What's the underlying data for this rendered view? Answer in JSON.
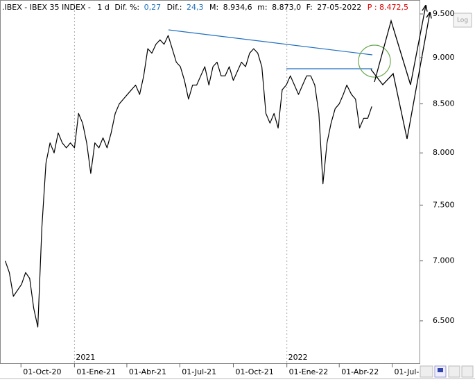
{
  "header": {
    "symbol": ".IBEX - IBEX 35 INDEX -",
    "period": "1 d",
    "dif_pct_label": "Dif. %:",
    "dif_pct": "0,27",
    "dif_label": "Dif.:",
    "dif": "24,3",
    "max_label": "M:",
    "max": "8.934,6",
    "min_label": "m:",
    "min": "8.873,0",
    "date_label": "F:",
    "date": "27-05-2022",
    "price": "P : 8.472,5"
  },
  "toolbar": {
    "log_button": "Log"
  },
  "chart_data": {
    "type": "line",
    "color": "#000000",
    "log_scale": true,
    "grid": false,
    "x": [
      "2020-09-04",
      "2020-09-11",
      "2020-09-18",
      "2020-09-25",
      "2020-10-02",
      "2020-10-09",
      "2020-10-16",
      "2020-10-23",
      "2020-10-30",
      "2020-11-06",
      "2020-11-13",
      "2020-11-20",
      "2020-11-27",
      "2020-12-04",
      "2020-12-11",
      "2020-12-18",
      "2020-12-25",
      "2021-01-01",
      "2021-01-08",
      "2021-01-15",
      "2021-01-22",
      "2021-01-29",
      "2021-02-05",
      "2021-02-12",
      "2021-02-19",
      "2021-02-26",
      "2021-03-05",
      "2021-03-12",
      "2021-03-19",
      "2021-03-26",
      "2021-04-02",
      "2021-04-09",
      "2021-04-16",
      "2021-04-23",
      "2021-04-30",
      "2021-05-07",
      "2021-05-14",
      "2021-05-21",
      "2021-05-28",
      "2021-06-04",
      "2021-06-11",
      "2021-06-18",
      "2021-06-25",
      "2021-07-02",
      "2021-07-09",
      "2021-07-16",
      "2021-07-23",
      "2021-07-30",
      "2021-08-06",
      "2021-08-13",
      "2021-08-20",
      "2021-08-27",
      "2021-09-03",
      "2021-09-10",
      "2021-09-17",
      "2021-09-24",
      "2021-10-01",
      "2021-10-08",
      "2021-10-15",
      "2021-10-22",
      "2021-10-29",
      "2021-11-05",
      "2021-11-12",
      "2021-11-19",
      "2021-11-26",
      "2021-12-03",
      "2021-12-10",
      "2021-12-17",
      "2021-12-24",
      "2021-12-31",
      "2022-01-07",
      "2022-01-14",
      "2022-01-21",
      "2022-01-28",
      "2022-02-04",
      "2022-02-11",
      "2022-02-18",
      "2022-02-25",
      "2022-03-04",
      "2022-03-11",
      "2022-03-18",
      "2022-03-25",
      "2022-04-01",
      "2022-04-08",
      "2022-04-14",
      "2022-04-22",
      "2022-04-29",
      "2022-05-06",
      "2022-05-13",
      "2022-05-20",
      "2022-05-27"
    ],
    "values": [
      7000,
      6900,
      6700,
      6750,
      6800,
      6900,
      6850,
      6600,
      6450,
      7300,
      7900,
      8100,
      8000,
      8200,
      8100,
      8050,
      8100,
      8050,
      8400,
      8300,
      8100,
      7800,
      8100,
      8050,
      8150,
      8050,
      8200,
      8400,
      8500,
      8550,
      8600,
      8650,
      8700,
      8600,
      8800,
      9100,
      9050,
      9150,
      9200,
      9150,
      9250,
      9100,
      8950,
      8900,
      8750,
      8550,
      8700,
      8700,
      8800,
      8900,
      8700,
      8900,
      8950,
      8800,
      8800,
      8900,
      8750,
      8850,
      8950,
      8900,
      9050,
      9100,
      9050,
      8900,
      8400,
      8300,
      8400,
      8250,
      8650,
      8700,
      8800,
      8700,
      8600,
      8700,
      8800,
      8800,
      8700,
      8400,
      7700,
      8100,
      8300,
      8450,
      8500,
      8600,
      8700,
      8600,
      8550,
      8250,
      8350,
      8350,
      8472.5
    ],
    "xlim": [
      "2020-08-26",
      "2022-08-17"
    ],
    "xticks": [
      {
        "value": "2020-10-01",
        "label": "01-Oct-20"
      },
      {
        "value": "2021-01-01",
        "label": "01-Ene-21"
      },
      {
        "value": "2021-04-01",
        "label": "01-Abr-21"
      },
      {
        "value": "2021-07-01",
        "label": "01-Jul-21"
      },
      {
        "value": "2021-10-01",
        "label": "01-Oct-21"
      },
      {
        "value": "2022-01-01",
        "label": "01-Ene-22"
      },
      {
        "value": "2022-04-01",
        "label": "01-Abr-22"
      },
      {
        "value": "2022-07-01",
        "label": "01-Jul-"
      }
    ],
    "year_markers": [
      {
        "value": "2021-01-01",
        "label": "2021"
      },
      {
        "value": "2022-01-01",
        "label": "2022"
      }
    ],
    "ylim": [
      6168,
      9665
    ],
    "yticks": [
      {
        "value": 6500,
        "label": "6.500"
      },
      {
        "value": 7000,
        "label": "7.000"
      },
      {
        "value": 7500,
        "label": "7.500"
      },
      {
        "value": 8000,
        "label": "8.000"
      },
      {
        "value": 8500,
        "label": "8.500"
      },
      {
        "value": 9000,
        "label": "9.000"
      },
      {
        "value": 9500,
        "label": "9.500"
      }
    ]
  }
}
